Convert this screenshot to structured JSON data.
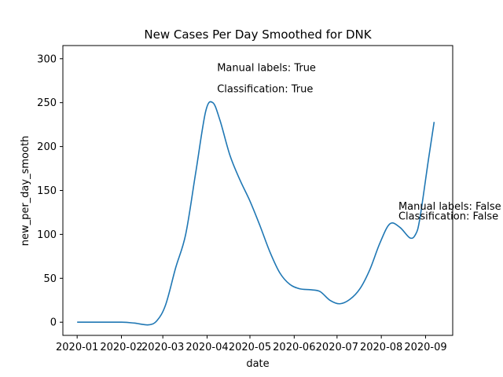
{
  "chart_data": {
    "type": "line",
    "title": "New Cases Per Day Smoothed for DNK",
    "xlabel": "date",
    "ylabel": "new_per_day_smooth",
    "ylim": [
      -15,
      315
    ],
    "yticks": [
      0,
      50,
      100,
      150,
      200,
      250,
      300
    ],
    "xticks": [
      "2020-01",
      "2020-02",
      "2020-03",
      "2020-04",
      "2020-05",
      "2020-06",
      "2020-07",
      "2020-08",
      "2020-09"
    ],
    "xlim": [
      "2019-12-22",
      "2020-09-20"
    ],
    "grid": false,
    "series_color": "#1f77b4",
    "series": [
      {
        "x": [
          "2020-01-01",
          "2020-01-15",
          "2020-02-01",
          "2020-02-10",
          "2020-02-20",
          "2020-02-26",
          "2020-03-03",
          "2020-03-10",
          "2020-03-17",
          "2020-03-24",
          "2020-03-31",
          "2020-04-05",
          "2020-04-10",
          "2020-04-17",
          "2020-04-24",
          "2020-05-01",
          "2020-05-08",
          "2020-05-15",
          "2020-05-22",
          "2020-05-29",
          "2020-06-05",
          "2020-06-12",
          "2020-06-19",
          "2020-06-26",
          "2020-07-03",
          "2020-07-10",
          "2020-07-17",
          "2020-07-24",
          "2020-07-31",
          "2020-08-07",
          "2020-08-14",
          "2020-08-21",
          "2020-08-25",
          "2020-08-28",
          "2020-09-03",
          "2020-09-07"
        ],
        "y": [
          0,
          0,
          0,
          -1,
          -3,
          2,
          20,
          62,
          100,
          170,
          240,
          250,
          230,
          190,
          162,
          138,
          110,
          80,
          56,
          43,
          38,
          37,
          35,
          25,
          21,
          26,
          38,
          60,
          90,
          112,
          108,
          96,
          100,
          118,
          185,
          228
        ]
      }
    ],
    "annotations": [
      {
        "text": "Manual labels: True",
        "x": "2020-04-08",
        "y": 286
      },
      {
        "text": "Classification: True",
        "x": "2020-04-08",
        "y": 262
      },
      {
        "text": "Manual labels: False",
        "x": "2020-08-13",
        "y": 128
      },
      {
        "text": "Classification: False",
        "x": "2020-08-13",
        "y": 117
      }
    ]
  }
}
